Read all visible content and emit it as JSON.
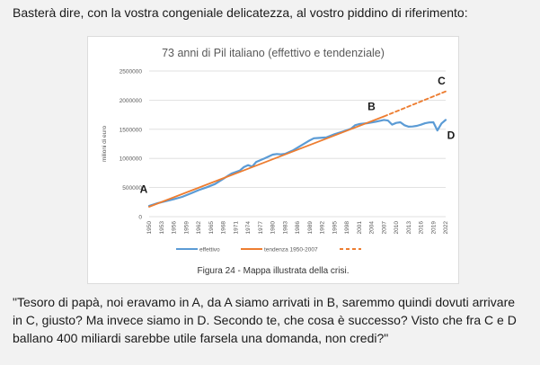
{
  "intro_text": "Basterà dire, con la vostra congeniale delicatezza, al vostro piddino di riferimento:",
  "figure": {
    "caption": "Figura 24 - Mappa illustrata della crisi."
  },
  "quote": {
    "lines": [
      "\"Tesoro di papà, noi eravamo in A, da A siamo arrivati in B, saremmo quindi dovuti arrivare",
      "in C, giusto? Ma invece siamo in D. Secondo te, che cosa è successo? Visto che fra C e D",
      "ballano 400 miliardi sarebbe utile farsela una domanda, non credi?\""
    ]
  },
  "chart_data": {
    "type": "line",
    "title": "73 anni di Pil italiano (effettivo e tendenziale)",
    "ylabel": "milioni di euro",
    "xlabel": "",
    "ylim": [
      0,
      2500000
    ],
    "yticks": [
      0,
      500000,
      1000000,
      1500000,
      2000000,
      2500000
    ],
    "ytick_labels": [
      "0",
      "500000",
      "1000000",
      "1500000",
      "2000000",
      "2500000"
    ],
    "xlim": [
      1950,
      2022
    ],
    "xticks": [
      1950,
      1953,
      1956,
      1959,
      1962,
      1965,
      1968,
      1971,
      1974,
      1977,
      1980,
      1983,
      1986,
      1989,
      1992,
      1995,
      1998,
      2001,
      2004,
      2007,
      2010,
      2013,
      2016,
      2019,
      2022
    ],
    "grid": "horizontal",
    "legend_position": "bottom",
    "series": [
      {
        "name": "effettivo",
        "color": "#5b9bd5",
        "style": "solid",
        "x": [
          1950,
          1952,
          1954,
          1956,
          1958,
          1960,
          1962,
          1964,
          1966,
          1968,
          1970,
          1972,
          1973,
          1974,
          1975,
          1976,
          1978,
          1980,
          1981,
          1982,
          1983,
          1985,
          1987,
          1989,
          1990,
          1991,
          1993,
          1995,
          1997,
          1999,
          2000,
          2001,
          2003,
          2005,
          2007,
          2008,
          2009,
          2010,
          2011,
          2012,
          2013,
          2014,
          2015,
          2016,
          2017,
          2018,
          2019,
          2020,
          2021,
          2022
        ],
        "y": [
          185000,
          230000,
          265000,
          300000,
          340000,
          395000,
          455000,
          505000,
          560000,
          650000,
          740000,
          790000,
          850000,
          885000,
          860000,
          940000,
          1000000,
          1065000,
          1075000,
          1070000,
          1078000,
          1140000,
          1225000,
          1310000,
          1345000,
          1350000,
          1360000,
          1415000,
          1460000,
          1510000,
          1570000,
          1590000,
          1605000,
          1630000,
          1660000,
          1650000,
          1580000,
          1610000,
          1620000,
          1570000,
          1545000,
          1548000,
          1558000,
          1578000,
          1603000,
          1617000,
          1620000,
          1480000,
          1600000,
          1660000
        ]
      },
      {
        "name": "tendenza 1950-2007",
        "color": "#ed7d31",
        "style": "solid",
        "x": [
          1950,
          2007
        ],
        "y": [
          170000,
          1720000
        ]
      },
      {
        "name": "",
        "color": "#ed7d31",
        "style": "dashed",
        "x": [
          2007,
          2022
        ],
        "y": [
          1720000,
          2150000
        ]
      }
    ],
    "annotations": [
      {
        "label": "A",
        "x": 1950,
        "y": 410000
      },
      {
        "label": "B",
        "x": 2004,
        "y": 1830000
      },
      {
        "label": "C",
        "x": 2021,
        "y": 2270000
      },
      {
        "label": "D",
        "x": 2022,
        "y": 1460000
      }
    ]
  }
}
